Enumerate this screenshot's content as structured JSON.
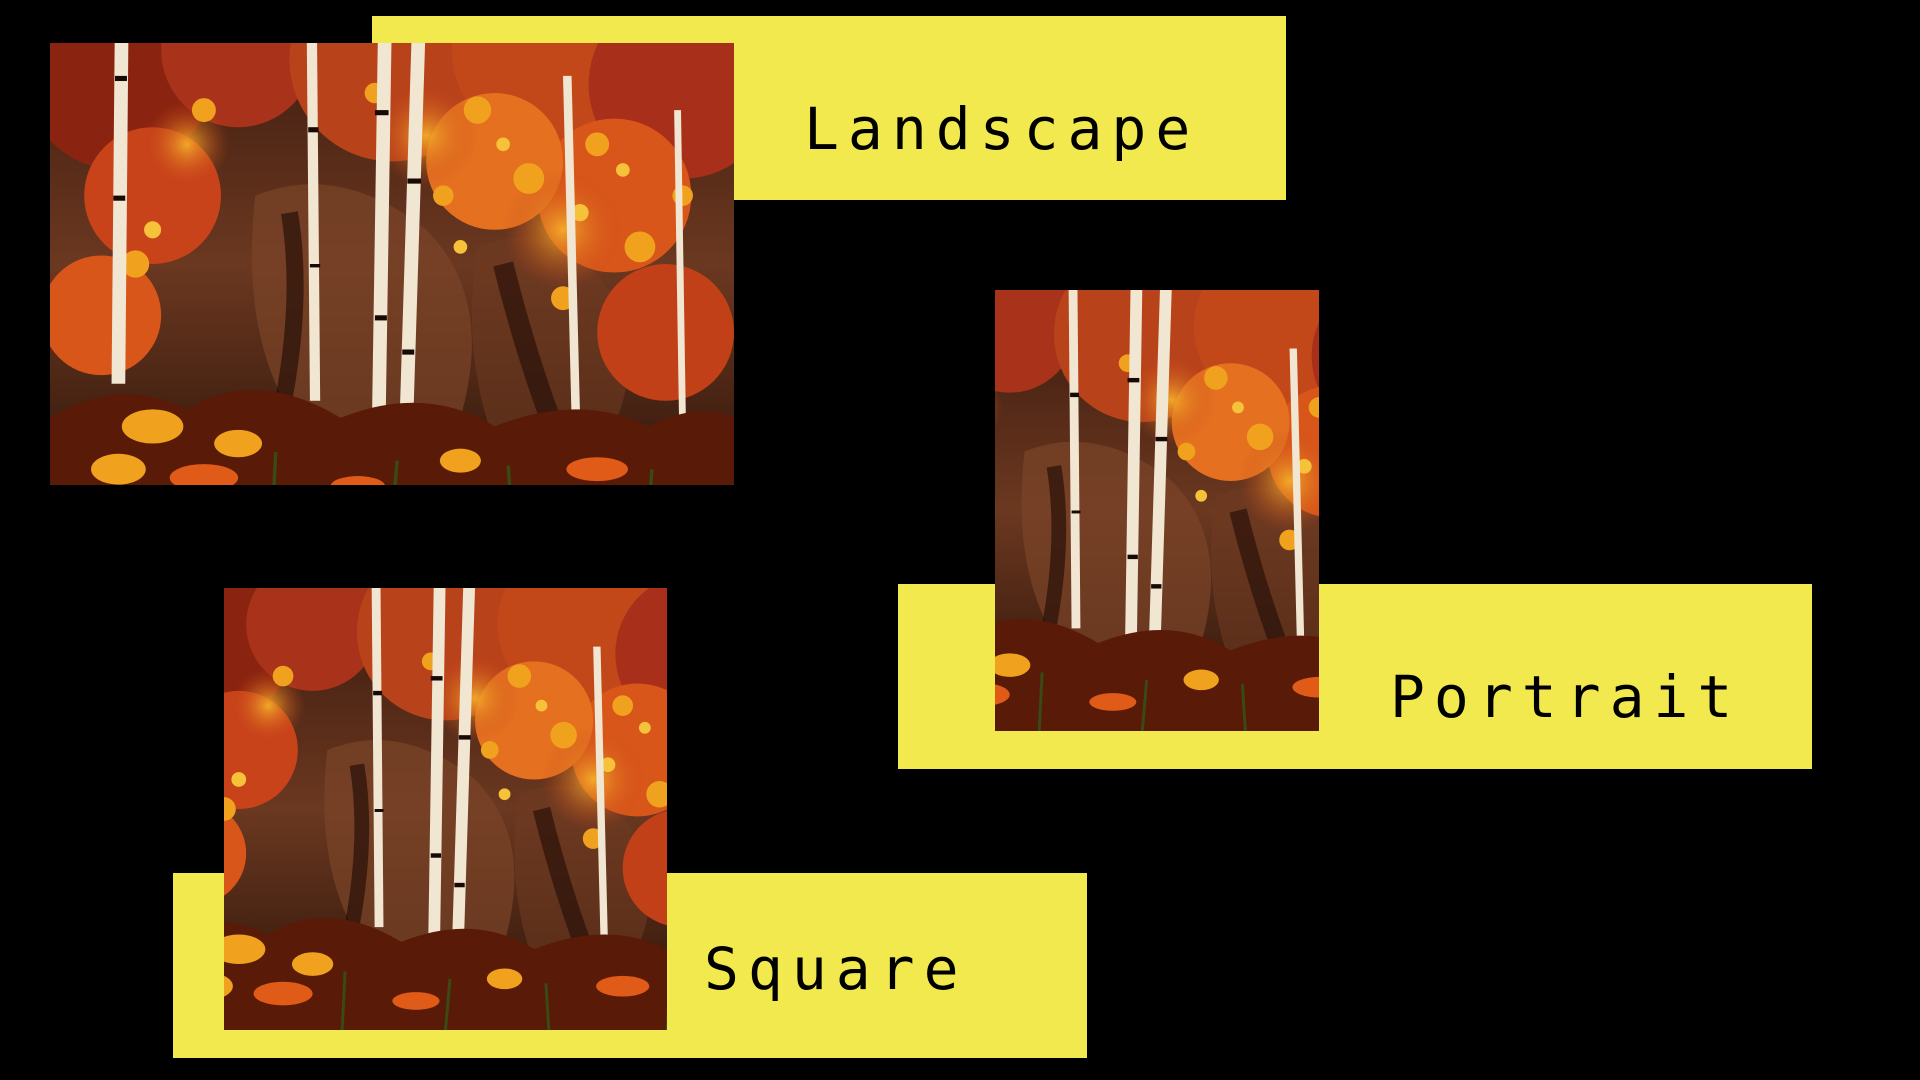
{
  "labels": {
    "landscape": "Landscape",
    "portrait": "Portrait",
    "square": "Square"
  },
  "colors": {
    "background": "#000000",
    "label_box": "#f2e94e",
    "label_text": "#000000",
    "foliage_deep": "#7a1e0c",
    "foliage_orange": "#d9561a",
    "foliage_yellow": "#f0a21e",
    "rock": "#5a2e1a",
    "birch": "#f1e6d2"
  },
  "icons": {
    "photo": "autumn-birch-forest-photo"
  }
}
